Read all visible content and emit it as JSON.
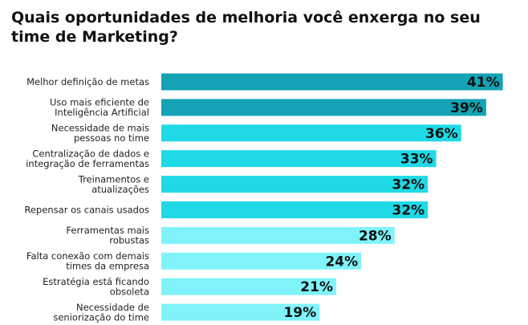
{
  "chart_data": {
    "type": "bar",
    "orientation": "horizontal",
    "title": "Quais oportunidades de melhoria você enxerga no seu time de Marketing?",
    "categories": [
      [
        "Melhor definição de metas"
      ],
      [
        "Uso mais eficiente de",
        "Inteligência Artificial"
      ],
      [
        "Necessidade de mais",
        "pessoas no time"
      ],
      [
        "Centralização de dados e",
        "integração de ferramentas"
      ],
      [
        "Treinamentos e",
        "atualizações"
      ],
      [
        "Repensar os canais usados"
      ],
      [
        "Ferramentas mais",
        "robustas"
      ],
      [
        "Falta conexão com demais",
        "times da empresa"
      ],
      [
        "Estratégia está ficando",
        "obsoleta"
      ],
      [
        "Necessidade de",
        "seniorização do time"
      ]
    ],
    "values": [
      41,
      39,
      36,
      33,
      32,
      32,
      28,
      24,
      21,
      19
    ],
    "value_labels": [
      "41%",
      "39%",
      "36%",
      "33%",
      "32%",
      "32%",
      "28%",
      "24%",
      "21%",
      "19%"
    ],
    "colors": [
      "#13a3b4",
      "#13a3b4",
      "#1fd9e6",
      "#1fd9e6",
      "#1fd9e6",
      "#1fd9e6",
      "#7ff3f9",
      "#7ff3f9",
      "#7ff3f9",
      "#7ff3f9"
    ],
    "xlim": [
      0,
      42
    ],
    "grid": false,
    "legend": "none"
  }
}
